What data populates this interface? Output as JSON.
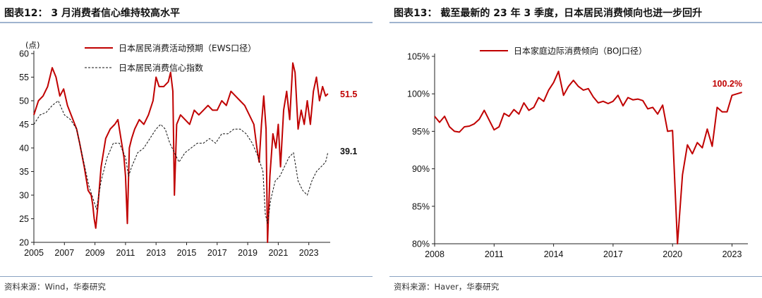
{
  "left": {
    "title": "图表12： 3 月消费者信心维持较高水平",
    "source": "资料来源：Wind，华泰研究",
    "chart_data": {
      "type": "line",
      "unit_label": "(点)",
      "ylim": [
        20,
        60
      ],
      "yticks": [
        20,
        25,
        30,
        35,
        40,
        45,
        50,
        55,
        60
      ],
      "xlim": [
        2005,
        2024.4
      ],
      "xticks": [
        2005,
        2007,
        2009,
        2011,
        2013,
        2015,
        2017,
        2019,
        2021,
        2023
      ],
      "legend_position": "top",
      "series": [
        {
          "name": "日本居民消费活动预期（EWS口径）",
          "color": "#c00000",
          "style": "solid",
          "end_label": "51.5",
          "x": [
            2005.0,
            2005.3,
            2005.6,
            2005.9,
            2006.2,
            2006.45,
            2006.7,
            2006.95,
            2007.2,
            2007.5,
            2007.8,
            2008.0,
            2008.3,
            2008.55,
            2008.75,
            2008.85,
            2008.95,
            2009.05,
            2009.2,
            2009.4,
            2009.7,
            2010.0,
            2010.3,
            2010.5,
            2010.7,
            2010.9,
            2011.0,
            2011.12,
            2011.25,
            2011.4,
            2011.6,
            2011.9,
            2012.2,
            2012.5,
            2012.8,
            2013.0,
            2013.2,
            2013.5,
            2013.8,
            2013.95,
            2014.1,
            2014.2,
            2014.35,
            2014.6,
            2014.9,
            2015.2,
            2015.5,
            2015.8,
            2016.1,
            2016.4,
            2016.7,
            2017.0,
            2017.3,
            2017.6,
            2017.9,
            2018.2,
            2018.5,
            2018.8,
            2019.1,
            2019.4,
            2019.6,
            2019.75,
            2019.9,
            2020.05,
            2020.2,
            2020.3,
            2020.45,
            2020.65,
            2020.85,
            2021.0,
            2021.15,
            2021.35,
            2021.55,
            2021.75,
            2021.95,
            2022.1,
            2022.3,
            2022.5,
            2022.7,
            2022.9,
            2023.1,
            2023.3,
            2023.5,
            2023.7,
            2023.9,
            2024.1,
            2024.25
          ],
          "y": [
            47,
            50,
            51,
            53,
            57,
            55,
            51,
            52.5,
            49,
            46.5,
            44,
            41,
            36,
            31,
            30,
            28,
            25,
            23,
            28,
            36,
            42,
            44,
            45,
            46,
            42,
            38,
            34,
            24,
            40,
            42,
            44,
            46,
            45,
            47,
            50,
            55,
            53,
            53,
            54,
            56,
            52,
            30,
            45,
            47,
            46,
            45,
            48,
            47,
            48,
            49,
            48,
            48,
            50,
            49,
            52,
            51,
            50,
            49,
            47,
            45,
            40,
            37,
            45,
            51,
            44,
            20,
            34,
            43,
            40,
            45,
            36,
            48,
            52,
            46,
            58,
            56,
            44,
            48,
            45,
            50,
            45,
            52,
            55,
            50,
            53,
            51,
            51.5
          ]
        },
        {
          "name": "日本居民消费信心指数",
          "color": "#111111",
          "style": "dashed",
          "end_label": "39.1",
          "x": [
            2005.0,
            2005.4,
            2005.8,
            2006.2,
            2006.6,
            2007.0,
            2007.4,
            2007.8,
            2008.2,
            2008.6,
            2008.9,
            2009.1,
            2009.4,
            2009.8,
            2010.2,
            2010.6,
            2011.0,
            2011.2,
            2011.4,
            2011.8,
            2012.2,
            2012.6,
            2013.0,
            2013.3,
            2013.6,
            2013.9,
            2014.2,
            2014.5,
            2014.9,
            2015.3,
            2015.7,
            2016.1,
            2016.5,
            2016.9,
            2017.3,
            2017.7,
            2018.1,
            2018.5,
            2018.9,
            2019.3,
            2019.7,
            2020.0,
            2020.15,
            2020.3,
            2020.5,
            2020.8,
            2021.1,
            2021.4,
            2021.7,
            2022.0,
            2022.3,
            2022.6,
            2022.9,
            2023.2,
            2023.5,
            2023.8,
            2024.1,
            2024.25
          ],
          "y": [
            45,
            47,
            47.5,
            49,
            50,
            47,
            46,
            44,
            38,
            32,
            29,
            27,
            33,
            38,
            41,
            41,
            38,
            34,
            36,
            39,
            40,
            42,
            44,
            45,
            44,
            41,
            39,
            37,
            39,
            40,
            41,
            41,
            42,
            41,
            43,
            43,
            44,
            44,
            43,
            41,
            38,
            35,
            26,
            24,
            29,
            33,
            34,
            36,
            38,
            39,
            33,
            31,
            30,
            33,
            35,
            36,
            37,
            39.1
          ]
        }
      ]
    }
  },
  "right": {
    "title": "图表13： 截至最新的 23 年 3 季度，日本居民消费倾向也进一步回升",
    "source": "资料来源：Haver，华泰研究",
    "chart_data": {
      "type": "line",
      "ylim": [
        80,
        105
      ],
      "yticks": [
        80,
        85,
        90,
        95,
        100,
        105
      ],
      "ytick_labels": [
        "80%",
        "85%",
        "90%",
        "95%",
        "100%",
        "105%"
      ],
      "xlim": [
        2008,
        2023.8
      ],
      "xticks": [
        2008,
        2011,
        2014,
        2017,
        2020,
        2023
      ],
      "legend_position": "top",
      "series": [
        {
          "name": "日本家庭边际消费倾向（BOJ口径）",
          "color": "#c00000",
          "style": "solid",
          "end_label": "100.2%",
          "x": [
            2008.0,
            2008.25,
            2008.5,
            2008.75,
            2009.0,
            2009.25,
            2009.5,
            2009.75,
            2010.0,
            2010.25,
            2010.5,
            2010.75,
            2011.0,
            2011.25,
            2011.5,
            2011.75,
            2012.0,
            2012.25,
            2012.5,
            2012.75,
            2013.0,
            2013.25,
            2013.5,
            2013.75,
            2014.0,
            2014.25,
            2014.5,
            2014.75,
            2015.0,
            2015.25,
            2015.5,
            2015.75,
            2016.0,
            2016.25,
            2016.5,
            2016.75,
            2017.0,
            2017.25,
            2017.5,
            2017.75,
            2018.0,
            2018.25,
            2018.5,
            2018.75,
            2019.0,
            2019.25,
            2019.5,
            2019.75,
            2020.0,
            2020.25,
            2020.5,
            2020.75,
            2021.0,
            2021.25,
            2021.5,
            2021.75,
            2022.0,
            2022.25,
            2022.5,
            2022.75,
            2023.0,
            2023.25,
            2023.5
          ],
          "y": [
            97,
            96.2,
            97,
            95.6,
            95,
            94.9,
            95.6,
            95.7,
            96,
            96.6,
            97.8,
            96.5,
            95.2,
            95.6,
            97.4,
            97.0,
            97.9,
            97.3,
            98.8,
            97.8,
            98.2,
            99.5,
            99.0,
            100.5,
            101.5,
            103.0,
            99.8,
            101.0,
            101.8,
            101.0,
            100.5,
            100.7,
            99.6,
            98.8,
            99.0,
            98.7,
            99.0,
            99.8,
            98.4,
            99.5,
            99.2,
            99.3,
            99.1,
            98.0,
            98.2,
            97.3,
            98.5,
            95.0,
            95.1,
            80.0,
            89.2,
            93.2,
            92.0,
            93.5,
            92.8,
            95.3,
            93.0,
            98.2,
            97.6,
            97.6,
            99.8,
            100.0,
            100.2
          ]
        }
      ]
    }
  }
}
